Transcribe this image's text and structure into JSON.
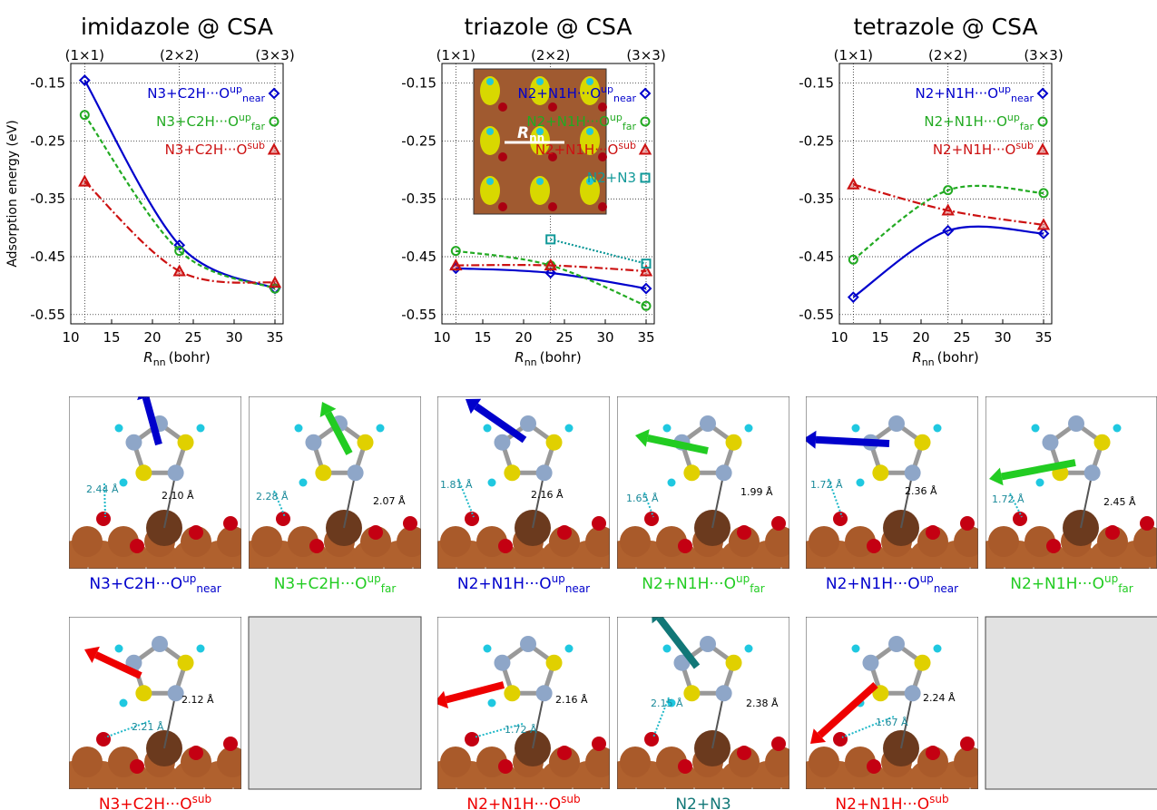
{
  "chart_data": [
    {
      "type": "line",
      "title": "imidazole @ CSA",
      "y_label": "Adsorption energy (eV)",
      "x_label": "R",
      "x_label_sub": "nn",
      "x_label_unit": "(bohr)",
      "x": [
        11.7,
        23.3,
        35.0
      ],
      "xlim": [
        10,
        36
      ],
      "xticks": [
        10,
        15,
        20,
        25,
        30,
        35
      ],
      "ylim": [
        -0.566,
        -0.116
      ],
      "yticks": [
        -0.15,
        -0.25,
        -0.35,
        -0.45,
        -0.55
      ],
      "top_ticks": [
        {
          "value": 11.7,
          "label": "(1×1)"
        },
        {
          "value": 23.3,
          "label": "(2×2)"
        },
        {
          "value": 35.0,
          "label": "(3×3)"
        }
      ],
      "series": [
        {
          "name": "N3+C2H···O",
          "sup": "up",
          "sub": "near",
          "color": "#0000cc",
          "marker": "diamond",
          "dash": "",
          "values": [
            -0.145,
            -0.43,
            -0.505
          ]
        },
        {
          "name": "N3+C2H···O",
          "sup": "up",
          "sub": "far",
          "color": "#22aa22",
          "marker": "circle",
          "dash": "5 3",
          "values": [
            -0.205,
            -0.44,
            -0.505
          ]
        },
        {
          "name": "N3+C2H···O",
          "sup": "sub",
          "color": "#cc1111",
          "marker": "triangle",
          "dash": "9 3 2 3",
          "values": [
            -0.32,
            -0.475,
            -0.495
          ]
        }
      ]
    },
    {
      "type": "line",
      "title": "triazole @ CSA",
      "x_label": "R",
      "x_label_sub": "nn",
      "x_label_unit": "(bohr)",
      "x": [
        11.7,
        23.3,
        35.0
      ],
      "xlim": [
        10,
        36
      ],
      "xticks": [
        10,
        15,
        20,
        25,
        30,
        35
      ],
      "ylim": [
        -0.566,
        -0.116
      ],
      "yticks": [
        -0.15,
        -0.25,
        -0.35,
        -0.45,
        -0.55
      ],
      "top_ticks": [
        {
          "value": 11.7,
          "label": "(1×1)"
        },
        {
          "value": 23.3,
          "label": "(2×2)"
        },
        {
          "value": 35.0,
          "label": "(3×3)"
        }
      ],
      "inset_label": "R",
      "inset_label_sub": "nn",
      "series": [
        {
          "name": "N2+N1H···O",
          "sup": "up",
          "sub": "near",
          "color": "#0000cc",
          "marker": "diamond",
          "dash": "",
          "values": [
            -0.47,
            -0.478,
            -0.505
          ]
        },
        {
          "name": "N2+N1H···O",
          "sup": "up",
          "sub": "far",
          "color": "#22aa22",
          "marker": "circle",
          "dash": "5 3",
          "values": [
            -0.44,
            -0.465,
            -0.535
          ]
        },
        {
          "name": "N2+N1H···O",
          "sup": "sub",
          "color": "#cc1111",
          "marker": "triangle",
          "dash": "9 3 2 3",
          "values": [
            -0.465,
            -0.465,
            -0.475
          ]
        },
        {
          "name": "N2+N3",
          "color": "#119999",
          "marker": "square",
          "dash": "2 2",
          "values": [
            null,
            -0.42,
            -0.462
          ]
        }
      ]
    },
    {
      "type": "line",
      "title": "tetrazole @ CSA",
      "x_label": "R",
      "x_label_sub": "nn",
      "x_label_unit": "(bohr)",
      "x": [
        11.7,
        23.3,
        35.0
      ],
      "xlim": [
        10,
        36
      ],
      "xticks": [
        10,
        15,
        20,
        25,
        30,
        35
      ],
      "ylim": [
        -0.566,
        -0.116
      ],
      "yticks": [
        -0.15,
        -0.25,
        -0.35,
        -0.45,
        -0.55
      ],
      "top_ticks": [
        {
          "value": 11.7,
          "label": "(1×1)"
        },
        {
          "value": 23.3,
          "label": "(2×2)"
        },
        {
          "value": 35.0,
          "label": "(3×3)"
        }
      ],
      "series": [
        {
          "name": "N2+N1H···O",
          "sup": "up",
          "sub": "near",
          "color": "#0000cc",
          "marker": "diamond",
          "dash": "",
          "values": [
            -0.52,
            -0.405,
            -0.41
          ]
        },
        {
          "name": "N2+N1H···O",
          "sup": "up",
          "sub": "far",
          "color": "#22aa22",
          "marker": "circle",
          "dash": "5 3",
          "values": [
            -0.455,
            -0.335,
            -0.34
          ]
        },
        {
          "name": "N2+N1H···O",
          "sup": "sub",
          "color": "#cc1111",
          "marker": "triangle",
          "dash": "9 3 2 3",
          "values": [
            -0.325,
            -0.37,
            -0.395
          ]
        }
      ]
    }
  ],
  "panels": [
    {
      "label": "N3+C2H···O",
      "sup": "up",
      "sub": "near",
      "color": "#0000cc",
      "distances": [
        "2.44 Å",
        "2.10 Å"
      ]
    },
    {
      "label": "N3+C2H···O",
      "sup": "up",
      "sub": "far",
      "color": "#22cc22",
      "distances": [
        "2.28 Å",
        "2.07 Å"
      ]
    },
    {
      "label": "N2+N1H···O",
      "sup": "up",
      "sub": "near",
      "color": "#0000cc",
      "distances": [
        "1.81 Å",
        "2.16 Å"
      ]
    },
    {
      "label": "N2+N1H···O",
      "sup": "up",
      "sub": "far",
      "color": "#22cc22",
      "distances": [
        "1.65 Å",
        "1.99 Å"
      ]
    },
    {
      "label": "N2+N1H···O",
      "sup": "up",
      "sub": "near",
      "color": "#0000cc",
      "distances": [
        "1.72 Å",
        "2.36 Å"
      ]
    },
    {
      "label": "N2+N1H···O",
      "sup": "up",
      "sub": "far",
      "color": "#22cc22",
      "distances": [
        "1.72 Å",
        "2.45 Å"
      ]
    },
    {
      "label": "N3+C2H···O",
      "sup": "sub",
      "color": "#ee0000",
      "distances": [
        "2.21 Å",
        "2.12 Å"
      ]
    },
    {
      "label": "N2+N1H···O",
      "sup": "sub",
      "color": "#ee0000",
      "distances": [
        "1.72 Å",
        "2.16 Å"
      ]
    },
    {
      "label": "N2+N3",
      "color": "#117777",
      "distances": [
        "2.15 Å",
        "2.38 Å"
      ]
    },
    {
      "label": "N2+N1H···O",
      "sup": "sub",
      "color": "#ee0000",
      "distances": [
        "1.67 Å",
        "2.24 Å"
      ]
    }
  ]
}
